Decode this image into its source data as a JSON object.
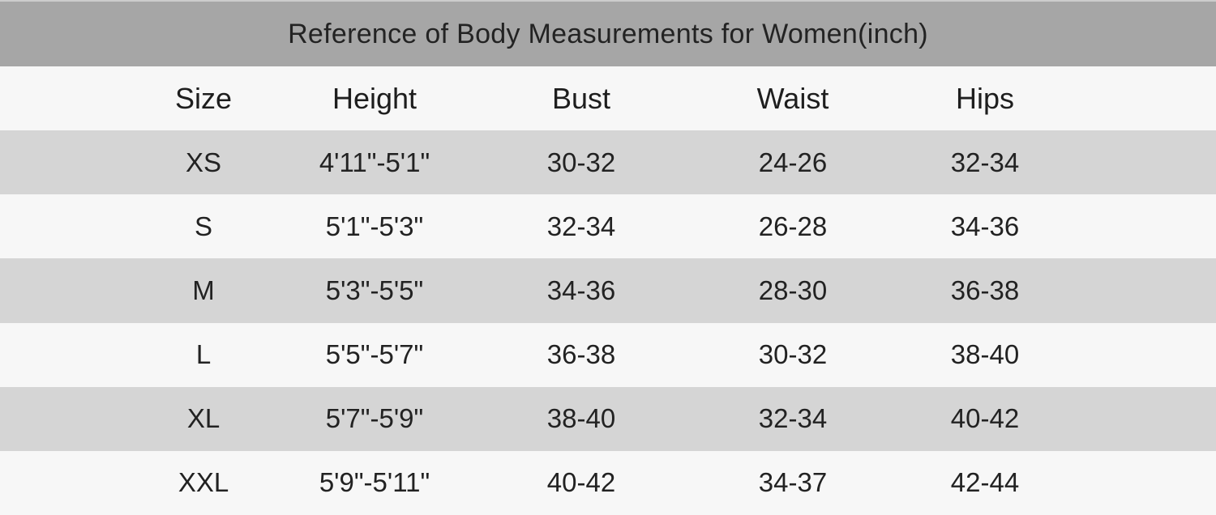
{
  "title": "Reference of Body Measurements for Women(inch)",
  "table": {
    "columns": [
      "Size",
      "Height",
      "Bust",
      "Waist",
      "Hips"
    ],
    "rows": [
      [
        "XS",
        "4'11\"-5'1\"",
        "30-32",
        "24-26",
        "32-34"
      ],
      [
        "S",
        "5'1\"-5'3\"",
        "32-34",
        "26-28",
        "34-36"
      ],
      [
        "M",
        "5'3\"-5'5\"",
        "34-36",
        "28-30",
        "36-38"
      ],
      [
        "L",
        "5'5\"-5'7\"",
        "36-38",
        "30-32",
        "38-40"
      ],
      [
        "XL",
        "5'7\"-5'9\"",
        "38-40",
        "32-34",
        "40-42"
      ],
      [
        "XXL",
        "5'9\"-5'11\"",
        "40-42",
        "34-37",
        "42-44"
      ]
    ]
  },
  "colors": {
    "title_bar": "#a6a6a6",
    "row_shade": "#d5d5d5",
    "row_light": "#f7f7f7",
    "text": "#222222"
  },
  "chart_data": {
    "type": "table",
    "title": "Reference of Body Measurements for Women(inch)",
    "columns": [
      "Size",
      "Height",
      "Bust",
      "Waist",
      "Hips"
    ],
    "rows": [
      [
        "XS",
        "4'11\"-5'1\"",
        "30-32",
        "24-26",
        "32-34"
      ],
      [
        "S",
        "5'1\"-5'3\"",
        "32-34",
        "26-28",
        "34-36"
      ],
      [
        "M",
        "5'3\"-5'5\"",
        "34-36",
        "28-30",
        "36-38"
      ],
      [
        "L",
        "5'5\"-5'7\"",
        "36-38",
        "30-32",
        "38-40"
      ],
      [
        "XL",
        "5'7\"-5'9\"",
        "38-40",
        "32-34",
        "40-42"
      ],
      [
        "XXL",
        "5'9\"-5'11\"",
        "40-42",
        "34-37",
        "42-44"
      ]
    ],
    "layout": {
      "header_bar": true,
      "alternating_row_shading": true,
      "gridlines": false
    }
  }
}
